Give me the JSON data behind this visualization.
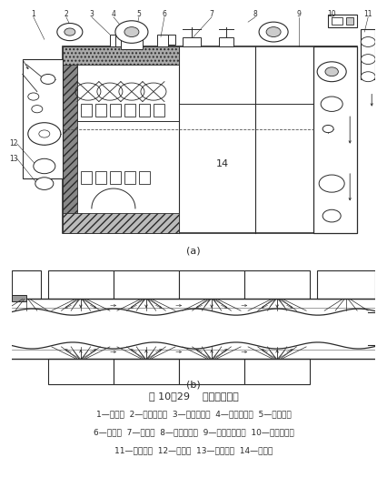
{
  "title": "图 10－29    气垫式烘燥机",
  "caption_line1": "1—进绸架  2—进绸电动机  3—叶形导布辊  4—垂直导布翼  5—循环风机",
  "caption_line2": "6—上风嘴  7—排气口  8—风机电动机  9—输送网电动机  10—出绸电动机",
  "caption_line3": "11—出绸装置  12—下风嘴  13—下稳压箱  14—传送网",
  "label_a": "(a)",
  "label_b": "(b)",
  "bg_color": "#ffffff",
  "line_color": "#2a2a2a",
  "hatch_gray": "#999999"
}
